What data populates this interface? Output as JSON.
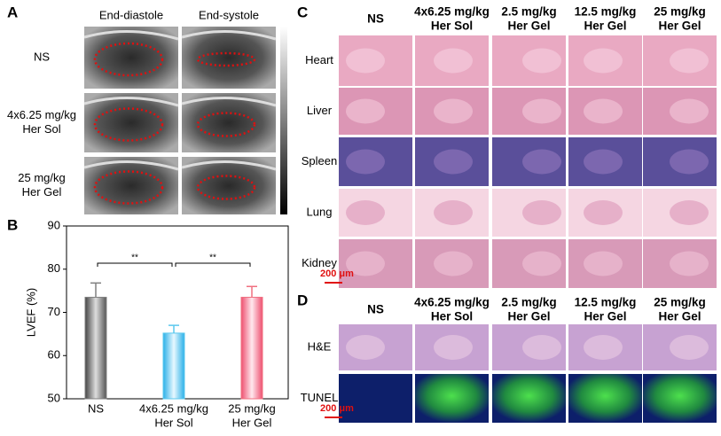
{
  "panel_a": {
    "label": "A",
    "columns": [
      "End-diastole",
      "End-systole"
    ],
    "rows": [
      [
        "NS"
      ],
      [
        "4x6.25 mg/kg",
        "Her Sol"
      ],
      [
        "25 mg/kg",
        "Her Gel"
      ]
    ]
  },
  "chart_data": {
    "type": "bar",
    "panel_label": "B",
    "y_label": "LVEF (%)",
    "categories": [
      [
        "NS"
      ],
      [
        "4x6.25 mg/kg",
        "Her Sol"
      ],
      [
        "25 mg/kg",
        "Her Gel"
      ]
    ],
    "values": [
      73.5,
      65.2,
      73.5
    ],
    "errors": [
      3.3,
      1.8,
      2.5
    ],
    "colors": [
      "#808080",
      "#5bc8ee",
      "#f07080"
    ],
    "ylim": [
      50,
      90
    ],
    "yticks": [
      50,
      60,
      70,
      80,
      90
    ],
    "annotations": [
      "**",
      "**"
    ]
  },
  "panel_c": {
    "label": "C",
    "columns": [
      [
        "NS"
      ],
      [
        "4x6.25 mg/kg",
        "Her Sol"
      ],
      [
        "2.5 mg/kg",
        "Her Gel"
      ],
      [
        "12.5 mg/kg",
        "Her Gel"
      ],
      [
        "25 mg/kg",
        "Her Gel"
      ]
    ],
    "rows": [
      "Heart",
      "Liver",
      "Spleen",
      "Lung",
      "Kidney"
    ],
    "scale_bar": "200 μm"
  },
  "panel_d": {
    "label": "D",
    "columns": [
      [
        "NS"
      ],
      [
        "4x6.25 mg/kg",
        "Her Sol"
      ],
      [
        "2.5 mg/kg",
        "Her Gel"
      ],
      [
        "12.5 mg/kg",
        "Her Gel"
      ],
      [
        "25 mg/kg",
        "Her Gel"
      ]
    ],
    "rows": [
      "H&E",
      "TUNEL"
    ],
    "scale_bar": "200 μm"
  }
}
